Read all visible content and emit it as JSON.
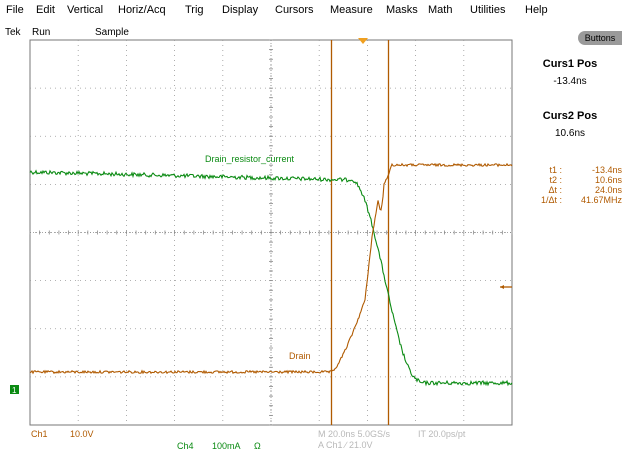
{
  "menu": [
    "File",
    "Edit",
    "Vertical",
    "Horiz/Acq",
    "Trig",
    "Display",
    "Cursors",
    "Measure",
    "Masks",
    "Math",
    "Utilities",
    "Help"
  ],
  "status": {
    "brand": "Tek",
    "state": "Run",
    "mode": "Sample"
  },
  "buttons_label": "Buttons",
  "cursors": {
    "curs1_title": "Curs1 Pos",
    "curs1_value": "-13.4ns",
    "curs2_title": "Curs2 Pos",
    "curs2_value": "10.6ns"
  },
  "measurements": [
    {
      "key": "t1 :",
      "value": "-13.4ns"
    },
    {
      "key": "t2 :",
      "value": "10.6ns"
    },
    {
      "key": "Δt :",
      "value": "24.0ns"
    },
    {
      "key": "1/Δt :",
      "value": "41.67MHz"
    }
  ],
  "labels": {
    "green_trace": "Drain_resistor_current",
    "orange_trace": "Drain",
    "ch1_marker": "1"
  },
  "bottom": {
    "ch1": "Ch1",
    "ch1_scale": "10.0V",
    "ch4": "Ch4",
    "ch4_scale": "100mA",
    "ch4_unit": "Ω",
    "timebase": "M 20.0ns 5.0GS/s",
    "record": "IT 20.0ps/pt",
    "trigger": "A  Ch1  ∕  21.0V"
  },
  "colors": {
    "green": "#0a8a12",
    "orange": "#b05a00",
    "grid": "#888888"
  }
}
